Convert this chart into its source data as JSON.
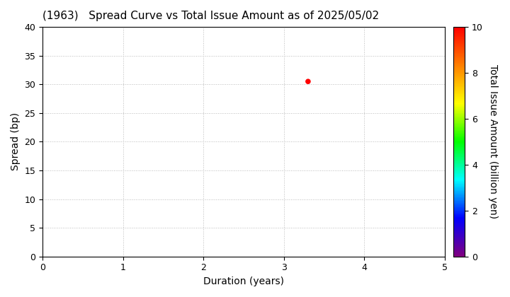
{
  "title": "(1963)   Spread Curve vs Total Issue Amount as of 2025/05/02",
  "xlabel": "Duration (years)",
  "ylabel": "Spread (bp)",
  "colorbar_label": "Total Issue Amount (billion yen)",
  "xlim": [
    0,
    5
  ],
  "ylim": [
    0,
    40
  ],
  "xticks": [
    0,
    1,
    2,
    3,
    4,
    5
  ],
  "yticks": [
    0,
    5,
    10,
    15,
    20,
    25,
    30,
    35,
    40
  ],
  "colorbar_ticks": [
    0,
    2,
    4,
    6,
    8,
    10
  ],
  "colorbar_min": 0,
  "colorbar_max": 10,
  "points": [
    {
      "duration": 3.3,
      "spread": 30.5,
      "amount": 10.0
    }
  ],
  "background_color": "#ffffff",
  "grid_color": "#bbbbbb",
  "grid_linestyle": ":",
  "title_fontsize": 11,
  "label_fontsize": 10,
  "tick_fontsize": 9,
  "cmap": "gist_rainbow_r"
}
